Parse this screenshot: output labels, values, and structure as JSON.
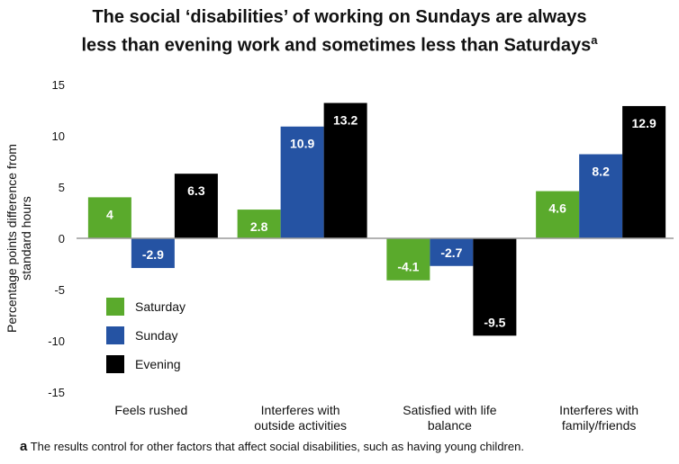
{
  "title_line1": "The social ‘disabilities’ of working on Sundays are always",
  "title_line2": "less than evening work and sometimes less than Saturdays",
  "title_marker": "a",
  "footnote_marker": "a",
  "footnote_text": "The results control for other factors that affect social disabilities, such as having young children.",
  "chart_data": {
    "type": "bar",
    "ylabel": "Percentage points difference from standard hours",
    "ylim": [
      -15,
      15
    ],
    "yticks": [
      15,
      10,
      5,
      0,
      -5,
      -10,
      -15
    ],
    "categories": [
      [
        "Feels rushed"
      ],
      [
        "Interferes with",
        "outside activities"
      ],
      [
        "Satisfied with life",
        "balance"
      ],
      [
        "Interferes with",
        "family/friends"
      ]
    ],
    "series": [
      {
        "name": "Saturday",
        "color": "#5aaa2c",
        "values": [
          4,
          2.8,
          -4.1,
          4.6
        ]
      },
      {
        "name": "Sunday",
        "color": "#2553a3",
        "values": [
          -2.9,
          10.9,
          -2.7,
          8.2
        ]
      },
      {
        "name": "Evening",
        "color": "#000000",
        "values": [
          6.3,
          13.2,
          -9.5,
          12.9
        ]
      }
    ],
    "legend_position": "lower-left",
    "grid": false
  }
}
